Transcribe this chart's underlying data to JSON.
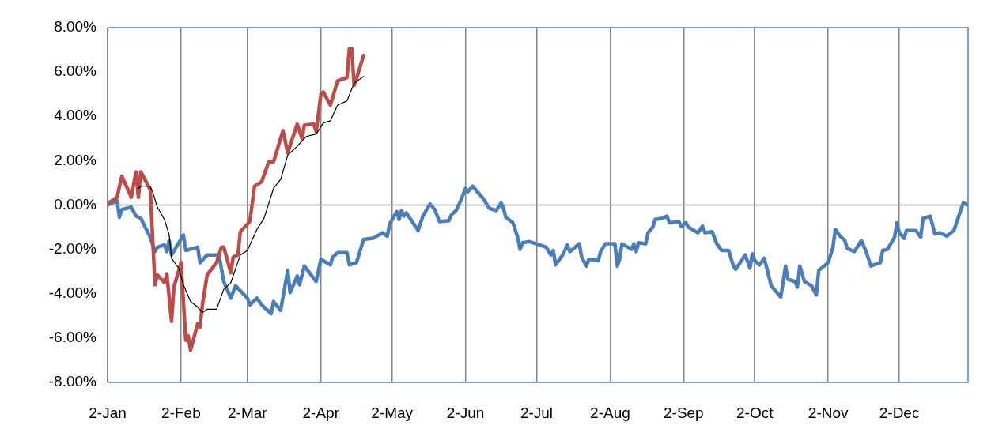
{
  "chart_data": {
    "type": "line",
    "xlim": [
      "--01-02",
      "--12-31"
    ],
    "xticks": [
      {
        "value": "--01-02",
        "label": "2-Jan"
      },
      {
        "value": "--02-02",
        "label": "2-Feb"
      },
      {
        "value": "--03-02",
        "label": "2-Mar"
      },
      {
        "value": "--04-02",
        "label": "2-Apr"
      },
      {
        "value": "--05-02",
        "label": "2-May"
      },
      {
        "value": "--06-02",
        "label": "2-Jun"
      },
      {
        "value": "--07-02",
        "label": "2-Jul"
      },
      {
        "value": "--08-02",
        "label": "2-Aug"
      },
      {
        "value": "--09-02",
        "label": "2-Sep"
      },
      {
        "value": "--10-02",
        "label": "2-Oct"
      },
      {
        "value": "--11-02",
        "label": "2-Nov"
      },
      {
        "value": "--12-02",
        "label": "2-Dec"
      }
    ],
    "ylim": [
      -8,
      8
    ],
    "yticks": [
      {
        "value": -8,
        "label": "-8.00%"
      },
      {
        "value": -6,
        "label": "-6.00%"
      },
      {
        "value": -4,
        "label": "-4.00%"
      },
      {
        "value": -2,
        "label": "-2.00%"
      },
      {
        "value": 0,
        "label": "0.00%"
      },
      {
        "value": 2,
        "label": "2.00%"
      },
      {
        "value": 4,
        "label": "4.00%"
      },
      {
        "value": 6,
        "label": "6.00%"
      },
      {
        "value": 8,
        "label": "8.00%"
      }
    ],
    "grid": "x",
    "ref_lines": [
      {
        "axis": "y",
        "value": 0,
        "color": "#868686"
      }
    ],
    "marker": "none",
    "line_style": "solid",
    "series": [
      {
        "color": "#4a7ebb",
        "x": [
          "--01-02",
          "--01-06",
          "--01-07",
          "--01-08",
          "--01-12",
          "--01-14",
          "--01-16",
          "--01-20",
          "--01-22",
          "--01-23",
          "--01-26",
          "--01-27",
          "--01-28",
          "--01-29",
          "--02-03",
          "--02-04",
          "--02-09",
          "--02-10",
          "--02-13",
          "--02-18",
          "--02-20",
          "--02-23",
          "--02-25",
          "--03-02",
          "--03-03",
          "--03-06",
          "--03-08",
          "--03-12",
          "--03-13",
          "--03-16",
          "--03-19",
          "--03-20",
          "--03-23",
          "--03-24",
          "--03-26",
          "--03-31",
          "--04-02",
          "--04-06",
          "--04-07",
          "--04-09",
          "--04-13",
          "--04-14",
          "--04-17",
          "--04-20",
          "--04-24",
          "--04-28",
          "--04-30",
          "--05-01",
          "--05-04",
          "--05-05",
          "--05-06",
          "--05-07",
          "--05-08",
          "--05-13",
          "--05-15",
          "--05-18",
          "--05-20",
          "--05-22",
          "--05-26",
          "--05-27",
          "--05-29",
          "--05-31",
          "--06-02",
          "--06-03",
          "--06-05",
          "--06-09",
          "--06-10",
          "--06-12",
          "--06-15",
          "--06-17",
          "--06-18",
          "--06-19",
          "--06-22",
          "--06-24",
          "--06-25",
          "--06-26",
          "--06-29",
          "--07-02",
          "--07-06",
          "--07-08",
          "--07-09",
          "--07-10",
          "--07-13",
          "--07-15",
          "--07-16",
          "--07-20",
          "--07-21",
          "--07-23",
          "--07-24",
          "--07-28",
          "--07-29",
          "--07-31",
          "--08-04",
          "--08-05",
          "--08-06",
          "--08-07",
          "--08-11",
          "--08-12",
          "--08-13",
          "--08-14",
          "--08-17",
          "--08-18",
          "--08-20",
          "--08-21",
          "--08-24",
          "--08-26",
          "--08-27",
          "--08-31",
          "--09-01",
          "--09-03",
          "--09-04",
          "--09-08",
          "--09-10",
          "--09-11",
          "--09-14",
          "--09-16",
          "--09-18",
          "--09-21",
          "--09-23",
          "--09-24",
          "--09-28",
          "--09-30",
          "--10-01",
          "--10-02",
          "--10-04",
          "--10-06",
          "--10-09",
          "--10-13",
          "--10-15",
          "--10-16",
          "--10-19",
          "--10-20",
          "--10-21",
          "--10-23",
          "--10-26",
          "--10-28",
          "--10-29",
          "--11-02",
          "--11-04",
          "--11-05",
          "--11-07",
          "--11-09",
          "--11-10",
          "--11-13",
          "--11-16",
          "--11-18",
          "--11-20",
          "--11-24",
          "--11-25",
          "--11-27",
          "--11-30",
          "--12-01",
          "--12-02",
          "--12-04",
          "--12-05",
          "--12-09",
          "--12-11",
          "--12-12",
          "--12-15",
          "--12-17",
          "--12-19",
          "--12-22",
          "--12-25",
          "--12-29",
          "--12-31"
        ],
        "values": [
          0.0,
          0.2,
          -0.55,
          -0.2,
          -0.1,
          -0.5,
          -0.6,
          -1.45,
          -2.1,
          -1.9,
          -1.8,
          -2.1,
          -1.6,
          -2.25,
          -1.35,
          -2.05,
          -1.9,
          -2.6,
          -2.25,
          -2.25,
          -3.45,
          -4.2,
          -3.65,
          -4.2,
          -4.5,
          -4.2,
          -4.5,
          -4.9,
          -4.35,
          -4.75,
          -2.95,
          -3.95,
          -3.2,
          -3.6,
          -2.75,
          -3.45,
          -2.45,
          -2.7,
          -2.35,
          -2.15,
          -2.15,
          -2.7,
          -2.6,
          -1.55,
          -1.5,
          -1.25,
          -1.4,
          -0.85,
          -0.3,
          -0.65,
          -0.25,
          -0.5,
          -0.35,
          -1.15,
          -0.5,
          0.05,
          -0.2,
          -0.75,
          -0.7,
          -0.45,
          -0.25,
          0.2,
          0.75,
          0.6,
          0.85,
          0.35,
          0.2,
          -0.15,
          -0.25,
          0.1,
          -0.15,
          -0.55,
          -0.8,
          -1.45,
          -2.0,
          -1.7,
          -1.65,
          -1.75,
          -1.9,
          -2.25,
          -2.05,
          -2.7,
          -2.25,
          -1.8,
          -2.1,
          -1.75,
          -2.35,
          -2.75,
          -2.45,
          -2.5,
          -2.1,
          -1.75,
          -1.75,
          -2.75,
          -2.45,
          -1.75,
          -2.0,
          -1.75,
          -2.1,
          -1.7,
          -1.75,
          -1.25,
          -1.0,
          -0.65,
          -0.6,
          -0.5,
          -0.8,
          -0.75,
          -0.95,
          -0.8,
          -1.0,
          -1.25,
          -0.95,
          -1.25,
          -1.2,
          -1.75,
          -2.05,
          -2.05,
          -2.75,
          -2.9,
          -2.25,
          -2.85,
          -2.2,
          -2.5,
          -2.7,
          -2.4,
          -3.65,
          -4.15,
          -2.75,
          -3.35,
          -3.45,
          -3.7,
          -2.75,
          -3.45,
          -3.65,
          -4.05,
          -2.95,
          -2.6,
          -1.9,
          -1.1,
          -1.4,
          -1.6,
          -1.95,
          -2.1,
          -1.6,
          -2.1,
          -2.75,
          -2.6,
          -2.05,
          -2.0,
          -1.45,
          -0.8,
          -1.25,
          -1.5,
          -1.15,
          -1.15,
          -1.45,
          -0.6,
          -0.5,
          -1.3,
          -1.25,
          -1.4,
          -1.15,
          0.1,
          0.0
        ]
      },
      {
        "color": "#be4b48",
        "x": [
          "--01-02",
          "--01-06",
          "--01-08",
          "--01-12",
          "--01-14",
          "--01-15",
          "--01-16",
          "--01-20",
          "--01-22",
          "--01-23",
          "--01-26",
          "--01-27",
          "--01-29",
          "--01-30",
          "--02-02",
          "--02-04",
          "--02-05",
          "--02-06",
          "--02-09",
          "--02-10",
          "--02-11",
          "--02-13",
          "--02-17",
          "--02-19",
          "--02-20",
          "--02-23",
          "--02-24",
          "--02-26",
          "--02-27",
          "--03-03",
          "--03-05",
          "--03-08",
          "--03-11",
          "--03-13",
          "--03-17",
          "--03-19",
          "--03-23",
          "--03-25",
          "--03-26",
          "--03-30",
          "--03-31",
          "--04-02",
          "--04-03",
          "--04-06",
          "--04-09",
          "--04-13",
          "--04-14",
          "--04-15",
          "--04-16",
          "--04-17",
          "--04-20"
        ],
        "values": [
          0.05,
          0.35,
          1.3,
          0.35,
          1.5,
          0.35,
          1.5,
          0.7,
          -3.6,
          -3.15,
          -3.5,
          -3.1,
          -5.25,
          -3.7,
          -2.6,
          -6.1,
          -5.9,
          -6.55,
          -5.35,
          -5.5,
          -4.5,
          -3.15,
          -2.6,
          -1.9,
          -1.9,
          -3.05,
          -2.35,
          -2.25,
          -1.2,
          -0.75,
          0.85,
          1.05,
          1.95,
          1.95,
          3.35,
          2.35,
          3.65,
          3.0,
          3.6,
          3.65,
          3.3,
          5.0,
          5.1,
          4.5,
          5.6,
          5.75,
          7.05,
          7.05,
          5.4,
          5.7,
          6.75
        ]
      },
      {
        "color": "#000000",
        "x": [
          "--01-15",
          "--01-16",
          "--01-20",
          "--01-21",
          "--01-23",
          "--01-26",
          "--01-28",
          "--01-29",
          "--02-01",
          "--02-03",
          "--02-06",
          "--02-09",
          "--02-11",
          "--02-13",
          "--02-17",
          "--02-20",
          "--02-23",
          "--02-27",
          "--03-02",
          "--03-06",
          "--03-09",
          "--03-13",
          "--03-16",
          "--03-19",
          "--03-23",
          "--03-26",
          "--03-27",
          "--03-31",
          "--04-03",
          "--04-06",
          "--04-09",
          "--04-13",
          "--04-16",
          "--04-20"
        ],
        "values": [
          0.75,
          0.85,
          0.85,
          0.6,
          -0.1,
          -0.65,
          -1.35,
          -2.4,
          -2.85,
          -3.6,
          -4.35,
          -4.6,
          -4.85,
          -4.7,
          -4.7,
          -3.8,
          -3.5,
          -2.25,
          -2.05,
          -1.1,
          -0.6,
          0.75,
          1.15,
          2.25,
          2.65,
          3.0,
          3.1,
          3.2,
          3.7,
          3.8,
          4.5,
          4.7,
          5.5,
          5.8
        ]
      }
    ]
  }
}
